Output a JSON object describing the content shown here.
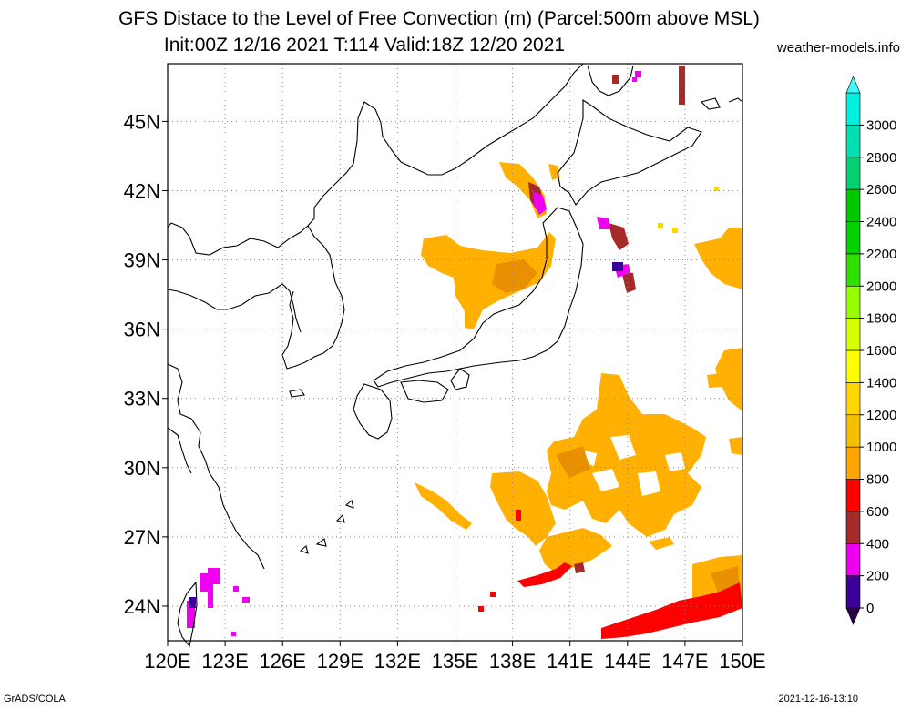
{
  "title_line1": "GFS Distace to the Level of Free Convection (m) (Parcel:500m above MSL)",
  "title_line2": "Init:00Z 12/16 2021 T:114 Valid:18Z 12/20 2021",
  "credit": "weather-models.info",
  "footer_left": "GrADS/COLA",
  "footer_right": "2021-12-16-13:10",
  "map": {
    "lon_range": [
      120,
      150
    ],
    "lat_range": [
      22.5,
      47.5
    ],
    "lat_ticks": [
      "45N",
      "42N",
      "39N",
      "36N",
      "33N",
      "30N",
      "27N",
      "24N"
    ],
    "lat_values": [
      45,
      42,
      39,
      36,
      33,
      30,
      27,
      24
    ],
    "lon_ticks": [
      "120E",
      "123E",
      "126E",
      "129E",
      "132E",
      "135E",
      "138E",
      "141E",
      "144E",
      "147E",
      "150E"
    ],
    "lon_values": [
      120,
      123,
      126,
      129,
      132,
      135,
      138,
      141,
      144,
      147,
      150
    ]
  },
  "colorbar": {
    "labels": [
      "0",
      "200",
      "400",
      "600",
      "800",
      "1000",
      "1200",
      "1400",
      "1600",
      "1800",
      "2000",
      "2200",
      "2400",
      "2600",
      "2800",
      "3000"
    ],
    "colors": [
      "#3c0096",
      "#f000f0",
      "#a52a2a",
      "#ff0000",
      "#ffa500",
      "#f5c000",
      "#ffd700",
      "#ffff00",
      "#d7ff00",
      "#96ff00",
      "#30e000",
      "#00d200",
      "#00c800",
      "#00d070",
      "#00e0b0",
      "#00f0e0"
    ],
    "low_arrow_color": "#2a004a",
    "high_arrow_color": "#40f8f8"
  }
}
